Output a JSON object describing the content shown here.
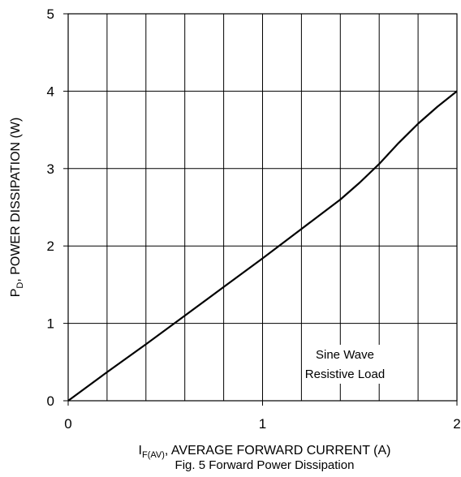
{
  "chart_data": {
    "type": "line",
    "xlabel": {
      "main": "I",
      "sub": "F(AV)",
      "rest": ", AVERAGE FORWARD CURRENT (A)"
    },
    "ylabel": {
      "main": "P",
      "sub": "D",
      "rest": ", POWER DISSIPATION (W)"
    },
    "caption": "Fig. 5 Forward Power Dissipation",
    "xlim": [
      0,
      2
    ],
    "ylim": [
      0,
      5
    ],
    "x_ticks": [
      0,
      1,
      2
    ],
    "y_ticks": [
      0,
      1,
      2,
      3,
      4,
      5
    ],
    "x_gridlines": [
      0.2,
      0.4,
      0.6,
      0.8,
      1.0,
      1.2,
      1.4,
      1.6,
      1.8
    ],
    "y_gridlines": [
      1,
      2,
      3,
      4
    ],
    "grid": true,
    "annotation": [
      "Sine Wave",
      "Resistive Load"
    ],
    "series": [
      {
        "x": [
          0,
          0.2,
          0.4,
          0.6,
          0.8,
          1.0,
          1.2,
          1.4,
          1.5,
          1.6,
          1.7,
          1.8,
          1.9,
          2.0
        ],
        "y": [
          0,
          0.37,
          0.73,
          1.1,
          1.47,
          1.84,
          2.22,
          2.6,
          2.82,
          3.06,
          3.33,
          3.58,
          3.8,
          4.0
        ]
      }
    ]
  }
}
